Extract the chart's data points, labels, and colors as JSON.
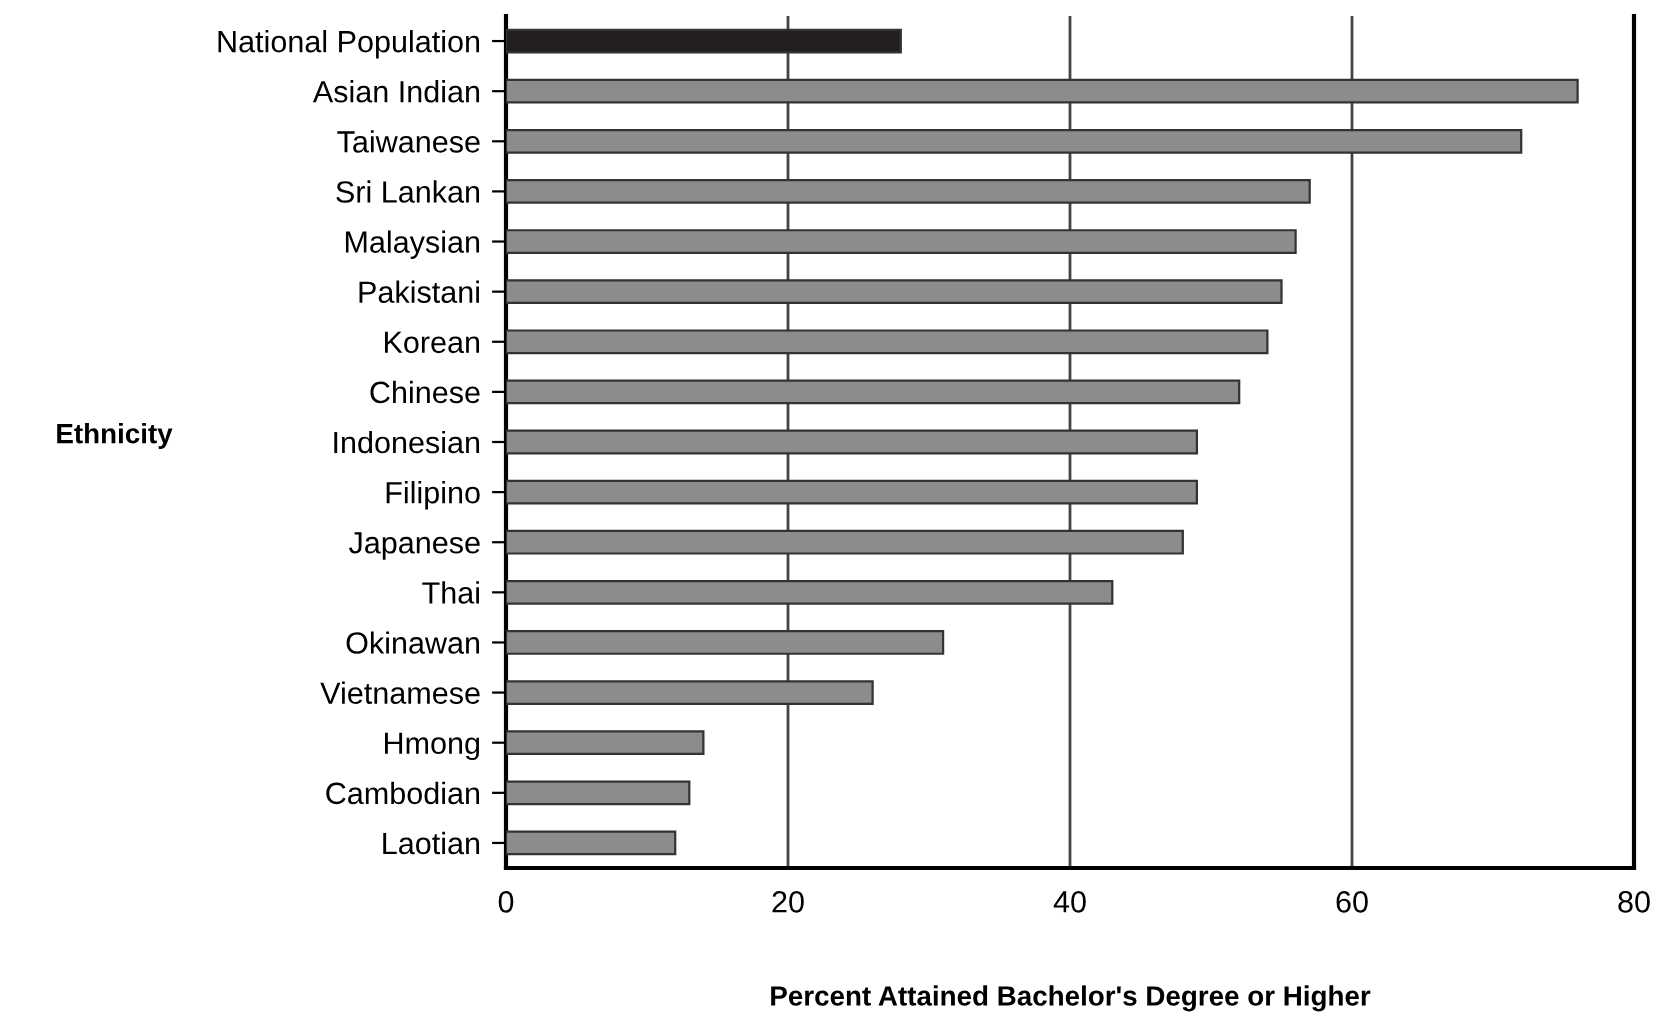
{
  "chart_data": {
    "type": "bar",
    "orientation": "horizontal",
    "xlabel": "Percent Attained Bachelor's Degree or Higher",
    "ylabel": "Ethnicity",
    "categories": [
      "National Population",
      "Asian Indian",
      "Taiwanese",
      "Sri Lankan",
      "Malaysian",
      "Pakistani",
      "Korean",
      "Chinese",
      "Indonesian",
      "Filipino",
      "Japanese",
      "Thai",
      "Okinawan",
      "Vietnamese",
      "Hmong",
      "Cambodian",
      "Laotian"
    ],
    "values": [
      28,
      76,
      72,
      57,
      56,
      55,
      54,
      52,
      49,
      49,
      48,
      43,
      31,
      26,
      14,
      13,
      12
    ],
    "colors": [
      "#231f20",
      "#8c8c8c",
      "#8c8c8c",
      "#8c8c8c",
      "#8c8c8c",
      "#8c8c8c",
      "#8c8c8c",
      "#8c8c8c",
      "#8c8c8c",
      "#8c8c8c",
      "#8c8c8c",
      "#8c8c8c",
      "#8c8c8c",
      "#8c8c8c",
      "#8c8c8c",
      "#8c8c8c",
      "#8c8c8c"
    ],
    "xlim": [
      0,
      80
    ],
    "xticks": [
      0,
      20,
      40,
      60,
      80
    ],
    "grid": "x",
    "legend": false
  }
}
